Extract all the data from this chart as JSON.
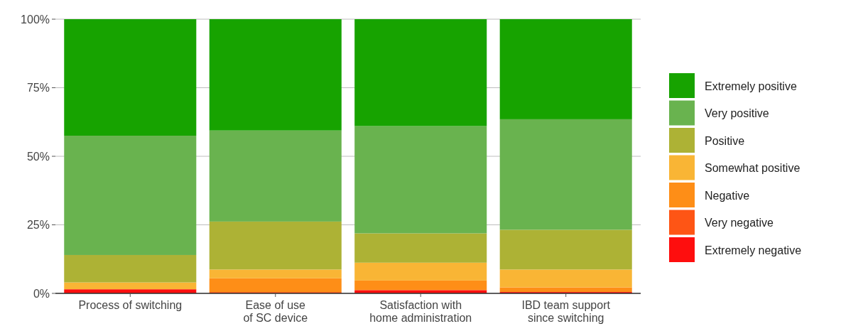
{
  "chart_data": {
    "type": "bar",
    "stacked": true,
    "categories": [
      "Process of switching",
      "Ease of use\nof SC device",
      "Satisfaction with\nhome administration",
      "IBD team support\nsince switching"
    ],
    "series": [
      {
        "name": "Extremely negative",
        "color": "#fe0e0e",
        "values": [
          1.5,
          0,
          1.2,
          0.5
        ]
      },
      {
        "name": "Very negative",
        "color": "#fe5515",
        "values": [
          0,
          0.5,
          0,
          0
        ]
      },
      {
        "name": "Negative",
        "color": "#fe8e17",
        "values": [
          0,
          5,
          3.5,
          1.7
        ]
      },
      {
        "name": "Somewhat positive",
        "color": "#f9b535",
        "values": [
          2.5,
          3.2,
          6.5,
          6.5
        ]
      },
      {
        "name": "Positive",
        "color": "#adb235",
        "values": [
          10,
          17.5,
          10.7,
          14.5
        ]
      },
      {
        "name": "Very positive",
        "color": "#69b34f",
        "values": [
          43.5,
          33.2,
          39.1,
          40.3
        ]
      },
      {
        "name": "Extremely positive",
        "color": "#17a300",
        "values": [
          42.5,
          40.6,
          39,
          36.5
        ]
      }
    ],
    "ylim": [
      0,
      100
    ],
    "yticks": [
      {
        "value": 0,
        "label": "0%"
      },
      {
        "value": 25,
        "label": "25%"
      },
      {
        "value": 50,
        "label": "50%"
      },
      {
        "value": 75,
        "label": "75%"
      },
      {
        "value": 100,
        "label": "100%"
      }
    ],
    "grid": "y",
    "legend": "right"
  }
}
